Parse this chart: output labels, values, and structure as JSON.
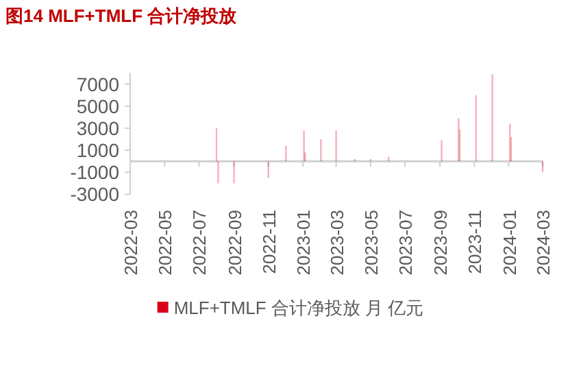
{
  "chart_data": {
    "type": "bar",
    "title": "图14  MLF+TMLF 合计净投放",
    "x": [
      "2022-08-01",
      "2022-08-04",
      "2022-09-01",
      "2022-11-01",
      "2022-12-02",
      "2023-01-03",
      "2023-01-05",
      "2023-02-02",
      "2023-03-01",
      "2023-04-03",
      "2023-05-01",
      "2023-06-02",
      "2023-09-04",
      "2023-10-04",
      "2023-10-06",
      "2023-11-04",
      "2023-12-03",
      "2024-01-03",
      "2024-01-05",
      "2024-03-01"
    ],
    "series": [
      {
        "name": "MLF+TMLF 合计净投放 月 亿元",
        "color": "#d9001b",
        "values": [
          3000,
          -2000,
          -2000,
          -1500,
          1400,
          2800,
          800,
          2000,
          2800,
          200,
          200,
          400,
          1900,
          3900,
          2900,
          6000,
          7900,
          3400,
          2200,
          -1000
        ]
      }
    ],
    "xlim": [
      "2022-03",
      "2024-03"
    ],
    "xticks": [
      "2022-03",
      "2022-05",
      "2022-07",
      "2022-09",
      "2022-11",
      "2023-01",
      "2023-03",
      "2023-05",
      "2023-07",
      "2023-09",
      "2023-11",
      "2024-01",
      "2024-03"
    ],
    "ylim": [
      -3000,
      8000
    ],
    "yticks": [
      -3000,
      -1000,
      1000,
      3000,
      5000,
      7000
    ],
    "grid": false,
    "legend": "bottom"
  }
}
